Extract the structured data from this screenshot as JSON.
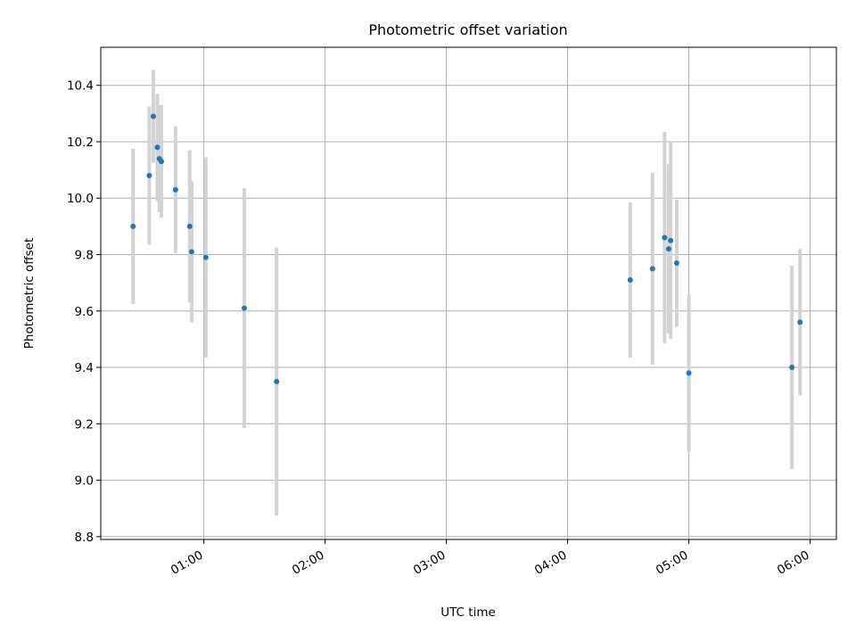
{
  "chart_data": {
    "type": "scatter",
    "title": "Photometric offset variation",
    "xlabel": "UTC time",
    "ylabel": "Photometric offset",
    "x_unit": "hours UTC",
    "xlim": [
      "00:09",
      "06:13"
    ],
    "ylim": [
      8.79,
      10.535
    ],
    "x_ticks": [
      "01:00",
      "02:00",
      "03:00",
      "04:00",
      "05:00",
      "06:00"
    ],
    "y_ticks": [
      "8.8",
      "9.0",
      "9.2",
      "9.4",
      "9.6",
      "9.8",
      "10.0",
      "10.2",
      "10.4"
    ],
    "grid": true,
    "legend": "none",
    "point_color": "#1f77b4",
    "errorbar_color": "#d3d3d3",
    "series": [
      {
        "points": [
          {
            "x": "00:25",
            "y": 9.9,
            "err": 0.275
          },
          {
            "x": "00:33",
            "y": 10.08,
            "err": 0.245
          },
          {
            "x": "00:35",
            "y": 10.29,
            "err": 0.165
          },
          {
            "x": "00:37",
            "y": 10.18,
            "err": 0.19
          },
          {
            "x": "00:38",
            "y": 10.14,
            "err": 0.19
          },
          {
            "x": "00:39",
            "y": 10.13,
            "err": 0.2
          },
          {
            "x": "00:46",
            "y": 10.03,
            "err": 0.225
          },
          {
            "x": "00:53",
            "y": 9.9,
            "err": 0.27
          },
          {
            "x": "00:54",
            "y": 9.81,
            "err": 0.25
          },
          {
            "x": "01:01",
            "y": 9.79,
            "err": 0.355
          },
          {
            "x": "01:20",
            "y": 9.61,
            "err": 0.425
          },
          {
            "x": "01:36",
            "y": 9.35,
            "err": 0.475
          },
          {
            "x": "04:31",
            "y": 9.71,
            "err": 0.275
          },
          {
            "x": "04:42",
            "y": 9.75,
            "err": 0.34
          },
          {
            "x": "04:48",
            "y": 9.86,
            "err": 0.375
          },
          {
            "x": "04:50",
            "y": 9.82,
            "err": 0.3
          },
          {
            "x": "04:51",
            "y": 9.85,
            "err": 0.35
          },
          {
            "x": "04:54",
            "y": 9.77,
            "err": 0.225
          },
          {
            "x": "05:00",
            "y": 9.38,
            "err": 0.28
          },
          {
            "x": "05:51",
            "y": 9.4,
            "err": 0.36
          },
          {
            "x": "05:55",
            "y": 9.56,
            "err": 0.26
          }
        ]
      }
    ]
  }
}
